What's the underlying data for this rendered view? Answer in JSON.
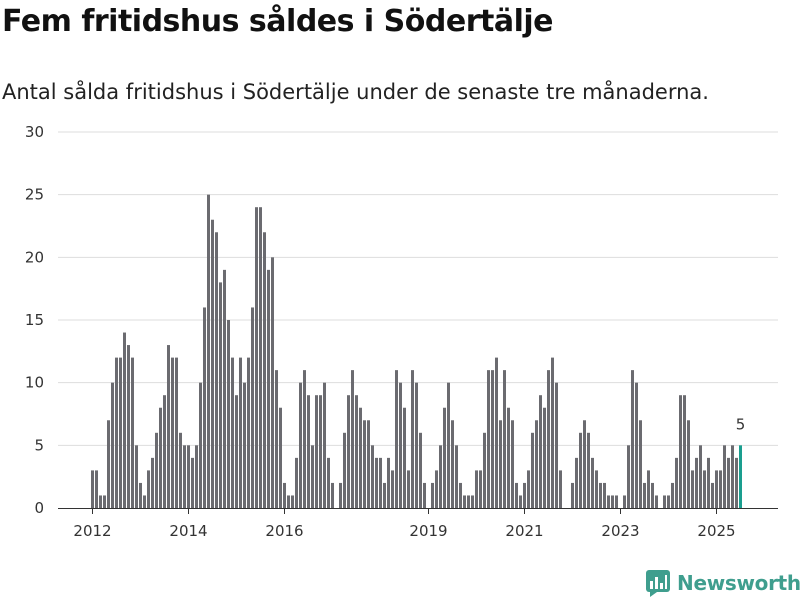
{
  "header": {
    "title": "Fem fritidshus såldes i Södertälje",
    "subtitle": "Antal sålda fritidshus i Södertälje under de senaste tre månaderna."
  },
  "brand": {
    "name": "Newsworthy",
    "color": "#3f9e8e"
  },
  "colors": {
    "bar": "#6b6b70",
    "highlight": "#1a9e8f",
    "grid": "#dddddd",
    "axis": "#333333"
  },
  "chart_data": {
    "type": "bar",
    "title": "Fem fritidshus såldes i Södertälje",
    "subtitle": "Antal sålda fritidshus i Södertälje under de senaste tre månaderna.",
    "xlabel": "",
    "ylabel": "",
    "ylim": [
      0,
      30
    ],
    "yticks": [
      0,
      5,
      10,
      15,
      20,
      25,
      30
    ],
    "grid": true,
    "start": "2012-01",
    "xticks": [
      {
        "label": "2012",
        "index": 0
      },
      {
        "label": "2014",
        "index": 24
      },
      {
        "label": "2016",
        "index": 48
      },
      {
        "label": "2019",
        "index": 84
      },
      {
        "label": "2021",
        "index": 108
      },
      {
        "label": "2023",
        "index": 132
      },
      {
        "label": "2025",
        "index": 156
      }
    ],
    "values": [
      3,
      3,
      1,
      1,
      7,
      10,
      12,
      12,
      14,
      13,
      12,
      5,
      2,
      1,
      3,
      4,
      6,
      8,
      9,
      13,
      12,
      12,
      6,
      5,
      5,
      4,
      5,
      10,
      16,
      25,
      23,
      22,
      18,
      19,
      15,
      12,
      9,
      12,
      10,
      12,
      16,
      24,
      24,
      22,
      19,
      20,
      11,
      8,
      2,
      1,
      1,
      4,
      10,
      11,
      9,
      5,
      9,
      9,
      10,
      4,
      2,
      0,
      2,
      6,
      9,
      11,
      9,
      8,
      7,
      7,
      5,
      4,
      4,
      2,
      4,
      3,
      11,
      10,
      8,
      3,
      11,
      10,
      6,
      2,
      0,
      2,
      3,
      5,
      8,
      10,
      7,
      5,
      2,
      1,
      1,
      1,
      3,
      3,
      6,
      11,
      11,
      12,
      7,
      11,
      8,
      7,
      2,
      1,
      2,
      3,
      6,
      7,
      9,
      8,
      11,
      12,
      10,
      3,
      0,
      0,
      2,
      4,
      6,
      7,
      6,
      4,
      3,
      2,
      2,
      1,
      1,
      1,
      0,
      1,
      5,
      11,
      10,
      7,
      2,
      3,
      2,
      1,
      0,
      1,
      1,
      2,
      4,
      9,
      9,
      7,
      3,
      4,
      5,
      3,
      4,
      2,
      3,
      3,
      5,
      4,
      5,
      4,
      5
    ],
    "highlight_last": true,
    "annotation": {
      "text": "5",
      "index": 162
    }
  }
}
